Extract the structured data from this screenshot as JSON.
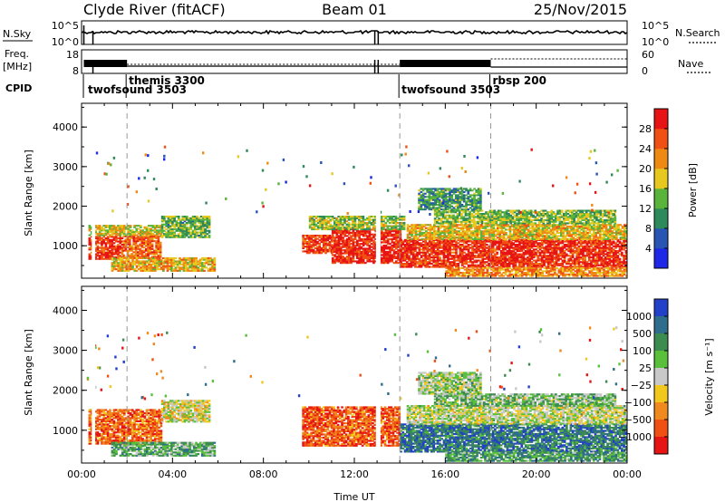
{
  "header": {
    "title": "Clyde River (fitACF)",
    "beam": "Beam 01",
    "date": "25/Nov/2015"
  },
  "panels": {
    "nsky": {
      "label": "N.Sky",
      "tick_top": "10^5",
      "tick_bottom": "10^0",
      "right_tick_top": "10^5",
      "right_tick_bottom": "10^0",
      "right_label": "N.Search"
    },
    "freq": {
      "label_line1": "Freq.",
      "label_line2": "[MHz]",
      "tick_top": "18",
      "tick_bottom": "8",
      "right_tick_top": "60",
      "right_tick_bottom": "0",
      "right_label": "Nave"
    },
    "cpid": {
      "label": "CPID",
      "modes": [
        {
          "name": "twofsound 3503",
          "t": 0.2
        },
        {
          "name": "themis 3300",
          "t": 2.0
        },
        {
          "name": "twofsound 3503",
          "t": 14.0
        },
        {
          "name": "rbsp 200",
          "t": 18.0
        }
      ]
    }
  },
  "chart_data": [
    {
      "type": "heatmap",
      "name": "power",
      "ylabel": "Slant Range [km]",
      "ylim": [
        180,
        4600
      ],
      "yticks": [
        1000,
        2000,
        3000,
        4000
      ],
      "xlim": [
        0,
        24
      ],
      "colorbar": {
        "label": "Power [dB]",
        "range": [
          0,
          32
        ],
        "ticks": [
          "4",
          "8",
          "12",
          "16",
          "20",
          "24",
          "28"
        ],
        "tick_values": [
          4,
          8,
          12,
          16,
          20,
          24,
          28
        ],
        "colors": [
          "#1e28e6",
          "#2855b4",
          "#2e8a5a",
          "#5ab43c",
          "#e6c81e",
          "#ee8a14",
          "#f05014",
          "#e61414"
        ]
      },
      "regions": [
        {
          "t0": 0.3,
          "t1": 1.8,
          "r0": 650,
          "r1": 1250,
          "level": 0.88
        },
        {
          "t0": 1.8,
          "t1": 3.5,
          "r0": 700,
          "r1": 1250,
          "level": 0.78
        },
        {
          "t0": 0.3,
          "t1": 3.5,
          "r0": 1250,
          "r1": 1500,
          "level": 0.55
        },
        {
          "t0": 3.5,
          "t1": 5.6,
          "r0": 1200,
          "r1": 1750,
          "level": 0.42
        },
        {
          "t0": 1.3,
          "t1": 5.8,
          "r0": 350,
          "r1": 700,
          "level": 0.62
        },
        {
          "t0": 9.7,
          "t1": 11.0,
          "r0": 800,
          "r1": 1250,
          "level": 0.86
        },
        {
          "t0": 11.0,
          "t1": 14.0,
          "r0": 550,
          "r1": 1400,
          "level": 0.92
        },
        {
          "t0": 10.0,
          "t1": 14.2,
          "r0": 1400,
          "r1": 1750,
          "level": 0.48
        },
        {
          "t0": 14.0,
          "t1": 24.0,
          "r0": 450,
          "r1": 1150,
          "level": 0.9
        },
        {
          "t0": 14.3,
          "t1": 24.0,
          "r0": 1150,
          "r1": 1550,
          "level": 0.6
        },
        {
          "t0": 15.5,
          "t1": 23.5,
          "r0": 1550,
          "r1": 1900,
          "level": 0.45
        },
        {
          "t0": 16.0,
          "t1": 24.0,
          "r0": 220,
          "r1": 450,
          "level": 0.7
        },
        {
          "t0": 14.8,
          "t1": 17.5,
          "r0": 1900,
          "r1": 2450,
          "level": 0.35
        }
      ]
    },
    {
      "type": "heatmap",
      "name": "velocity",
      "ylabel": "Slant Range [km]",
      "ylim": [
        180,
        4600
      ],
      "yticks": [
        1000,
        2000,
        3000,
        4000
      ],
      "xlim": [
        0,
        24
      ],
      "xticks": [
        "00:00",
        "04:00",
        "08:00",
        "12:00",
        "16:00",
        "20:00",
        "00:00"
      ],
      "xlabel": "Time UT",
      "colorbar": {
        "label": "Velocity [m s⁻¹]",
        "ticks": [
          "1000",
          "500",
          "100",
          "25",
          "−25",
          "−100",
          "−500",
          "−1000"
        ],
        "colors": [
          "#2340c8",
          "#2e6e8c",
          "#3c8c50",
          "#5ac03c",
          "#c8c8c8",
          "#f0c81e",
          "#f08a1e",
          "#f05014",
          "#e61414"
        ]
      },
      "regions": [
        {
          "t0": 0.3,
          "t1": 3.5,
          "r0": 650,
          "r1": 1500,
          "level": 0.8
        },
        {
          "t0": 3.5,
          "t1": 5.6,
          "r0": 1200,
          "r1": 1750,
          "level": 0.55
        },
        {
          "t0": 1.3,
          "t1": 5.8,
          "r0": 350,
          "r1": 700,
          "level": 0.35
        },
        {
          "t0": 9.7,
          "t1": 14.0,
          "r0": 600,
          "r1": 1600,
          "level": 0.82
        },
        {
          "t0": 14.0,
          "t1": 24.0,
          "r0": 450,
          "r1": 1150,
          "level": 0.2
        },
        {
          "t0": 14.3,
          "t1": 24.0,
          "r0": 1150,
          "r1": 1600,
          "level": 0.5
        },
        {
          "t0": 15.5,
          "t1": 23.5,
          "r0": 1600,
          "r1": 1900,
          "level": 0.4
        },
        {
          "t0": 16.0,
          "t1": 24.0,
          "r0": 220,
          "r1": 450,
          "level": 0.3
        },
        {
          "t0": 14.8,
          "t1": 17.5,
          "r0": 1900,
          "r1": 2450,
          "level": 0.45
        }
      ]
    }
  ]
}
